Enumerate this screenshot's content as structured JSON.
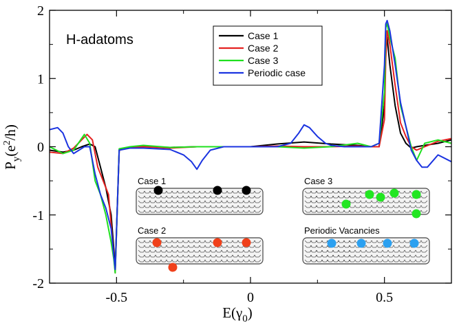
{
  "panel_label": "H-adatoms",
  "chart_data": {
    "type": "line",
    "xlabel_base": "E(γ",
    "xlabel_sub": "0",
    "xlabel_end": ")",
    "ylabel_base": "P",
    "ylabel_sub": "y",
    "ylabel_unit_open": "(e",
    "ylabel_sup": "2",
    "ylabel_unit_close": "/h)",
    "xlim": [
      -0.75,
      0.75
    ],
    "ylim": [
      -2,
      2
    ],
    "xticks": [
      -0.5,
      0,
      0.5
    ],
    "xtick_labels": [
      "-0.5",
      "0",
      "0.5"
    ],
    "yticks": [
      -2,
      -1,
      0,
      1,
      2
    ],
    "ytick_labels": [
      "-2",
      "-1",
      "0",
      "1",
      "2"
    ],
    "grid": false,
    "legend_position": "top-center",
    "series": [
      {
        "name": "Case 1",
        "color": "#000000",
        "x": [
          -0.75,
          -0.7,
          -0.66,
          -0.63,
          -0.6,
          -0.58,
          -0.56,
          -0.54,
          -0.52,
          -0.51,
          -0.505,
          -0.49,
          -0.45,
          -0.4,
          -0.3,
          -0.2,
          -0.1,
          0.0,
          0.1,
          0.2,
          0.3,
          0.4,
          0.45,
          0.48,
          0.5,
          0.505,
          0.51,
          0.52,
          0.54,
          0.56,
          0.58,
          0.6,
          0.62,
          0.65,
          0.7,
          0.75
        ],
        "y": [
          -0.05,
          -0.08,
          -0.05,
          0.0,
          0.04,
          0.0,
          -0.3,
          -0.6,
          -1.0,
          -1.5,
          -1.8,
          -0.05,
          -0.01,
          0.0,
          -0.01,
          0.0,
          0.0,
          0.0,
          0.04,
          0.07,
          0.04,
          0.02,
          0.0,
          0.0,
          0.6,
          1.5,
          1.6,
          1.2,
          0.6,
          0.2,
          0.05,
          -0.02,
          0.0,
          0.02,
          0.05,
          0.1
        ]
      },
      {
        "name": "Case 2",
        "color": "#e4201f",
        "x": [
          -0.75,
          -0.7,
          -0.66,
          -0.63,
          -0.61,
          -0.59,
          -0.57,
          -0.55,
          -0.53,
          -0.51,
          -0.505,
          -0.49,
          -0.45,
          -0.4,
          -0.3,
          -0.2,
          -0.1,
          0.0,
          0.1,
          0.2,
          0.3,
          0.4,
          0.45,
          0.48,
          0.5,
          0.505,
          0.51,
          0.52,
          0.54,
          0.56,
          0.58,
          0.6,
          0.62,
          0.65,
          0.7,
          0.75
        ],
        "y": [
          -0.08,
          -0.1,
          -0.02,
          0.1,
          0.18,
          0.1,
          -0.3,
          -0.5,
          -0.7,
          -1.6,
          -1.85,
          -0.05,
          -0.01,
          0.0,
          -0.02,
          0.0,
          0.0,
          0.0,
          0.01,
          0.0,
          0.0,
          0.01,
          0.0,
          0.0,
          0.4,
          1.3,
          1.7,
          1.5,
          0.9,
          0.35,
          0.15,
          0.0,
          -0.05,
          0.0,
          0.08,
          0.12
        ]
      },
      {
        "name": "Case 3",
        "color": "#1ee01e",
        "x": [
          -0.75,
          -0.7,
          -0.66,
          -0.62,
          -0.6,
          -0.58,
          -0.56,
          -0.54,
          -0.52,
          -0.51,
          -0.505,
          -0.49,
          -0.45,
          -0.4,
          -0.3,
          -0.2,
          -0.1,
          0.0,
          0.1,
          0.2,
          0.3,
          0.4,
          0.45,
          0.48,
          0.5,
          0.505,
          0.51,
          0.52,
          0.54,
          0.56,
          0.58,
          0.6,
          0.62,
          0.65,
          0.7,
          0.75
        ],
        "y": [
          0.0,
          -0.1,
          -0.05,
          0.18,
          0.05,
          -0.5,
          -0.7,
          -1.0,
          -1.4,
          -1.65,
          -1.85,
          -0.03,
          0.0,
          0.02,
          -0.01,
          0.0,
          0.0,
          0.0,
          0.0,
          -0.02,
          0.0,
          0.05,
          0.0,
          0.05,
          0.8,
          1.75,
          1.8,
          1.6,
          1.3,
          0.6,
          0.3,
          0.0,
          -0.2,
          0.05,
          0.1,
          0.05
        ]
      },
      {
        "name": "Periodic case",
        "color": "#1a33e0",
        "x": [
          -0.75,
          -0.72,
          -0.7,
          -0.68,
          -0.66,
          -0.64,
          -0.62,
          -0.6,
          -0.58,
          -0.56,
          -0.54,
          -0.52,
          -0.51,
          -0.505,
          -0.49,
          -0.45,
          -0.4,
          -0.3,
          -0.25,
          -0.22,
          -0.2,
          -0.18,
          -0.15,
          -0.1,
          0.0,
          0.1,
          0.15,
          0.18,
          0.2,
          0.22,
          0.25,
          0.28,
          0.3,
          0.35,
          0.4,
          0.45,
          0.48,
          0.5,
          0.505,
          0.51,
          0.52,
          0.54,
          0.56,
          0.58,
          0.6,
          0.62,
          0.64,
          0.66,
          0.7,
          0.75
        ],
        "y": [
          0.25,
          0.28,
          0.2,
          0.0,
          -0.1,
          -0.05,
          0.0,
          0.0,
          -0.4,
          -0.7,
          -0.9,
          -1.2,
          -1.6,
          -1.8,
          -0.05,
          -0.02,
          -0.02,
          -0.04,
          -0.12,
          -0.22,
          -0.33,
          -0.2,
          -0.05,
          0.0,
          0.0,
          0.0,
          0.05,
          0.2,
          0.32,
          0.28,
          0.15,
          0.05,
          0.02,
          0.0,
          0.0,
          0.0,
          0.05,
          1.2,
          1.8,
          1.85,
          1.7,
          1.2,
          0.65,
          0.3,
          -0.05,
          -0.2,
          -0.3,
          -0.3,
          -0.12,
          -0.22
        ]
      }
    ]
  },
  "insets": [
    {
      "label": "Case 1",
      "dot_color": "#000000"
    },
    {
      "label": "Case 3",
      "dot_color": "#22e622"
    },
    {
      "label": "Case 2",
      "dot_color": "#f0401a"
    },
    {
      "label": "Periodic Vacancies",
      "dot_color": "#2ba0f0"
    }
  ]
}
